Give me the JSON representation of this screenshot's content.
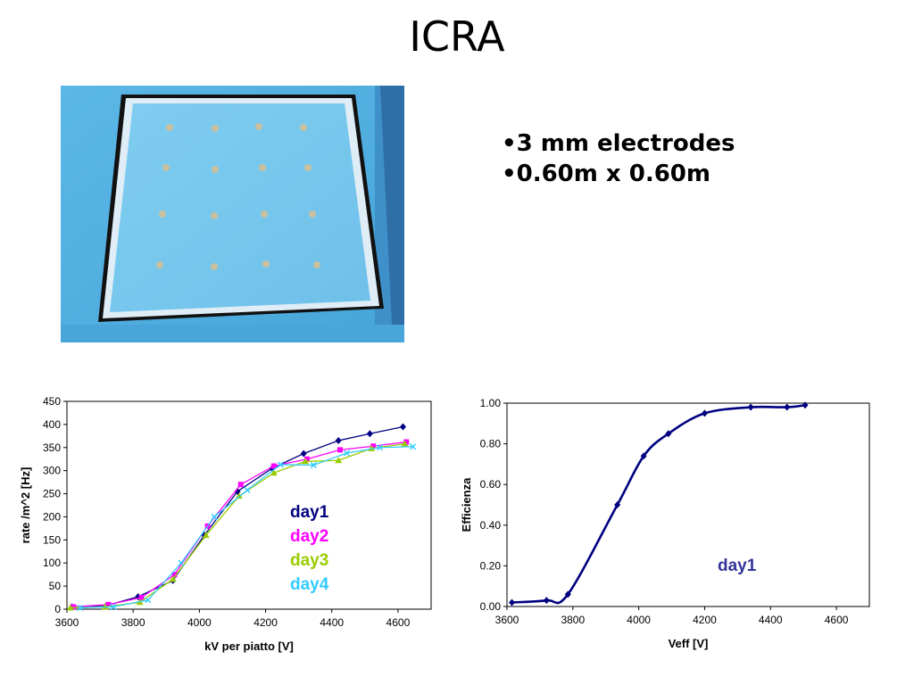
{
  "slide": {
    "title": "ICRA",
    "bullets": [
      "•3 mm electrodes",
      "•0.60m x 0.60m"
    ]
  },
  "chart_data": [
    {
      "type": "line",
      "xlabel": "kV per piatto  [V]",
      "ylabel": "rate /m^2  [Hz]",
      "xlim": [
        3600,
        4700
      ],
      "ylim": [
        0,
        450
      ],
      "x_ticks": [
        3600,
        3800,
        4000,
        4200,
        4400,
        4600
      ],
      "y_ticks": [
        0,
        50,
        100,
        150,
        200,
        250,
        300,
        350,
        400,
        450
      ],
      "legend_position": "center-right",
      "series": [
        {
          "name": "day1",
          "color": "#000080",
          "marker": "diamond",
          "x": [
            3615,
            3720,
            3815,
            3920,
            4015,
            4115,
            4220,
            4315,
            4420,
            4515,
            4615
          ],
          "y": [
            5,
            8,
            27,
            62,
            160,
            255,
            305,
            337,
            365,
            380,
            395
          ]
        },
        {
          "name": "day2",
          "color": "#ff00ff",
          "marker": "square",
          "x": [
            3620,
            3725,
            3825,
            3925,
            4025,
            4125,
            4225,
            4325,
            4425,
            4525,
            4625
          ],
          "y": [
            5,
            10,
            25,
            75,
            180,
            270,
            310,
            325,
            345,
            353,
            362
          ]
        },
        {
          "name": "day3",
          "color": "#99cc00",
          "marker": "triangle",
          "x": [
            3610,
            3715,
            3820,
            3920,
            4020,
            4120,
            4225,
            4320,
            4420,
            4520,
            4620
          ],
          "y": [
            3,
            5,
            15,
            65,
            160,
            245,
            295,
            320,
            322,
            348,
            358
          ]
        },
        {
          "name": "day4",
          "color": "#33ccff",
          "marker": "x",
          "x": [
            3640,
            3740,
            3845,
            3945,
            4045,
            4145,
            4245,
            4345,
            4445,
            4545,
            4645
          ],
          "y": [
            3,
            5,
            20,
            100,
            200,
            258,
            313,
            312,
            338,
            350,
            352
          ]
        }
      ]
    },
    {
      "type": "line",
      "xlabel": "Veff      [V]",
      "ylabel": "Efficienza",
      "xlim": [
        3600,
        4700
      ],
      "ylim": [
        0,
        1
      ],
      "x_ticks": [
        3600,
        3800,
        4000,
        4200,
        4400,
        4600
      ],
      "y_ticks": [
        "0.00",
        "0.20",
        "0.40",
        "0.60",
        "0.80",
        "1.00"
      ],
      "y_tick_values": [
        0,
        0.2,
        0.4,
        0.6,
        0.8,
        1.0
      ],
      "annotation": "day1",
      "series": [
        {
          "name": "day1",
          "color": "#000080",
          "marker": "diamond",
          "x": [
            3615,
            3720,
            3785,
            3935,
            4015,
            4090,
            4200,
            4340,
            4450,
            4505
          ],
          "y": [
            0.02,
            0.03,
            0.06,
            0.5,
            0.74,
            0.85,
            0.95,
            0.98,
            0.98,
            0.99
          ]
        }
      ]
    }
  ]
}
